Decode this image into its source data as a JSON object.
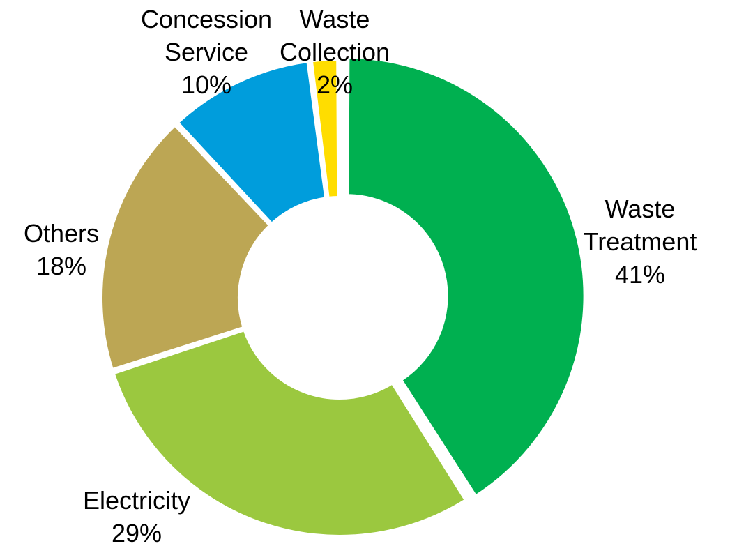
{
  "chart_data": {
    "type": "pie",
    "subtype": "donut",
    "slices": [
      {
        "label_lines": [
          "Waste",
          "Treatment"
        ],
        "percent_label": "41%",
        "value": 41,
        "color": "#00B050"
      },
      {
        "label_lines": [
          "Electricity"
        ],
        "percent_label": "29%",
        "value": 29,
        "color": "#9BC83F"
      },
      {
        "label_lines": [
          "Others"
        ],
        "percent_label": "18%",
        "value": 18,
        "color": "#BCA654"
      },
      {
        "label_lines": [
          "Concession",
          "Service"
        ],
        "percent_label": "10%",
        "value": 10,
        "color": "#009DDC"
      },
      {
        "label_lines": [
          "Waste",
          "Collection"
        ],
        "percent_label": "2%",
        "value": 2,
        "color": "#FFDD00"
      }
    ]
  }
}
